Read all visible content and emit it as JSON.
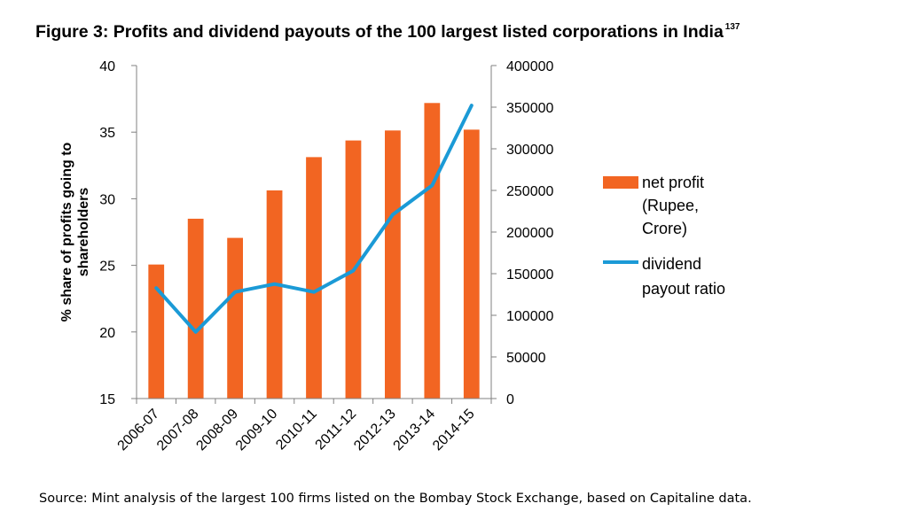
{
  "title": "Figure 3: Profits and dividend payouts of the 100 largest listed corporations in India",
  "title_superscript": "137",
  "source": "Source: Mint analysis of the largest 100 firms listed on the Bombay Stock Exchange, based on Capitaline data.",
  "chart_data": {
    "type": "bar",
    "categories": [
      "2006-07",
      "2007-08",
      "2008-09",
      "2009-10",
      "2010-11",
      "2011-12",
      "2012-13",
      "2013-14",
      "2014-15"
    ],
    "series": [
      {
        "name": "net profit (Rupee, Crore)",
        "legend_lines": [
          "net profit",
          "(Rupee,",
          "Crore)"
        ],
        "type": "bar",
        "axis": "right",
        "color": "#f26522",
        "values": [
          161000,
          216000,
          193000,
          250000,
          290000,
          310000,
          322000,
          355000,
          323000
        ]
      },
      {
        "name": "dividend payout ratio",
        "legend_lines": [
          "dividend",
          "payout ratio"
        ],
        "type": "line",
        "axis": "left",
        "color": "#1b9ad6",
        "values": [
          23.3,
          20.0,
          23.0,
          23.6,
          23.0,
          24.6,
          28.8,
          31.0,
          37.0
        ]
      }
    ],
    "ylabel": "% share of profits going to shareholders",
    "ylabel_lines": [
      "% share of profits going to",
      "shareholders"
    ],
    "ylim": [
      15,
      40
    ],
    "yticks": [
      15,
      20,
      25,
      30,
      35,
      40
    ],
    "y2lim": [
      0,
      400000
    ],
    "y2ticks": [
      0,
      50000,
      100000,
      150000,
      200000,
      250000,
      300000,
      350000,
      400000
    ],
    "legend_position": "right",
    "grid": false
  }
}
